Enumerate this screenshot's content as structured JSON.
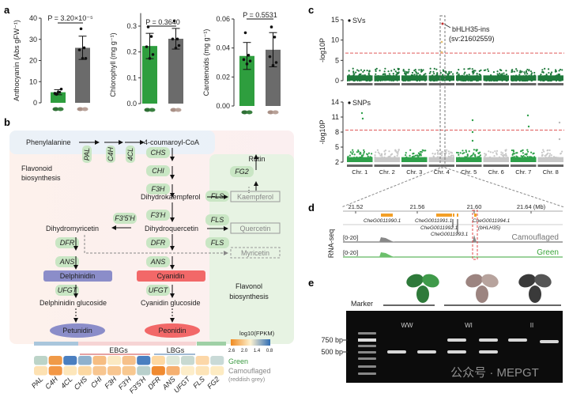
{
  "panel_labels": [
    "a",
    "b",
    "c",
    "d",
    "e"
  ],
  "chart_data": [
    {
      "type": "bar",
      "ylabel": "Anthocyanin (Abs gFW⁻¹)",
      "ylim": [
        0,
        40
      ],
      "yticks": [
        "0",
        "10",
        "20",
        "30",
        "40"
      ],
      "categories": [
        "green",
        "camouflaged"
      ],
      "values": [
        5,
        26
      ],
      "error": [
        1.2,
        5.5
      ],
      "points": [
        [
          4,
          5,
          4.5,
          6.5,
          5
        ],
        [
          35,
          26,
          25,
          21,
          21
        ]
      ],
      "pvalue": "P = 3.20×10⁻⁵",
      "colors": [
        "#2e9e3e",
        "#6b6b6b"
      ]
    },
    {
      "type": "bar",
      "ylabel": "Chlorophyll (mg g⁻¹)",
      "ylim": [
        0,
        0.35
      ],
      "yticks": [
        "0.0",
        "0.1",
        "0.2",
        "0.3"
      ],
      "categories": [
        "green",
        "camouflaged"
      ],
      "values": [
        0.223,
        0.251
      ],
      "error": [
        0.049,
        0.04
      ],
      "points": [
        [
          0.297,
          0.26,
          0.22,
          0.19,
          0.175
        ],
        [
          0.32,
          0.25,
          0.25,
          0.225,
          0.215
        ]
      ],
      "pvalue": "P = 0.3640",
      "colors": [
        "#2e9e3e",
        "#6b6b6b"
      ]
    },
    {
      "type": "bar",
      "ylabel": "Carotenoids (mg g⁻¹)",
      "ylim": [
        0,
        0.06
      ],
      "yticks": [
        "0.00",
        "0.02",
        "0.04",
        "0.06"
      ],
      "categories": [
        "green",
        "camouflaged"
      ],
      "values": [
        0.0345,
        0.0388
      ],
      "error": [
        0.0093,
        0.0118
      ],
      "points": [
        [
          0.0505,
          0.035,
          0.032,
          0.031,
          0.029
        ],
        [
          0.0545,
          0.0475,
          0.034,
          0.03,
          0.028
        ]
      ],
      "pvalue": "P = 0.5531",
      "colors": [
        "#2e9e3e",
        "#6b6b6b"
      ]
    },
    {
      "type": "scatter",
      "title": "SVs",
      "ylabel": "-log10P",
      "ylim": [
        0,
        15
      ],
      "yticks": [
        "0",
        "5",
        "10",
        "15"
      ],
      "threshold": 6.8,
      "annotation": "bHLH35-ins",
      "annotation2": "(sv:21602559)",
      "lead_value": 14
    },
    {
      "type": "scatter",
      "title": "SNPs",
      "ylabel": "-log10P",
      "ylim": [
        2,
        14
      ],
      "yticks": [
        "2",
        "5",
        "8",
        "11",
        "14"
      ],
      "threshold": 8.4,
      "categories": [
        "Chr. 1",
        "Chr. 2",
        "Chr. 3",
        "Chr. 4",
        "Chr. 5",
        "Chr. 6",
        "Chr. 7",
        "Chr. 8"
      ]
    },
    {
      "type": "heatmap",
      "legend_title": "log10(FPKM)",
      "scale_ticks": [
        "2.6",
        "2.0",
        "1.4",
        "0.8"
      ],
      "columns": [
        "PAL",
        "C4H",
        "4CL",
        "CHS",
        "CHI",
        "F3H",
        "F3'H",
        "F3'5'H",
        "DFR",
        "ANS",
        "UFGT",
        "FLS",
        "FG2"
      ],
      "rows": [
        "Green",
        "Camouflaged"
      ],
      "row_note": "(reddish grey)",
      "groups": [
        "EBGs",
        "LBGs"
      ],
      "cell_colors": [
        [
          "#bcd4c8",
          "#f09a48",
          "#4a7fc0",
          "#8fb1cd",
          "#f6bd82",
          "#fbe9c2",
          "#f6c08a",
          "#4a7fc0",
          "#fdd8a2",
          "#dfe8d8",
          "#c8d9d1",
          "#fcd7a8",
          "#c9dad7"
        ],
        [
          "#fde1b2",
          "#f39745",
          "#fde6ba",
          "#fcd8a2",
          "#f8c690",
          "#f8c690",
          "#f8c890",
          "#b9d0cc",
          "#f08a30",
          "#f6b070",
          "#fdedc9",
          "#fde4b8",
          "#fdebc2"
        ]
      ]
    }
  ],
  "pathway": {
    "nodes": [
      "Phenylalanine",
      "4-coumaroyl-CoA",
      "Flavonoid",
      "biosynthesis",
      "Dihydrokaempferol",
      "Dihydroquercetin",
      "Dihydromyricetin",
      "Rutin",
      "Delphinidin glucoside",
      "Cyanidin glucoside",
      "Flavonol",
      "biosynthesis",
      "⋮"
    ],
    "enzymes": [
      "PAL",
      "C4H",
      "4CL",
      "CHS",
      "CHI",
      "F3H",
      "F3'H",
      "F3'5'H",
      "DFR",
      "DFR",
      "ANS",
      "ANS",
      "UFGT",
      "UFGT",
      "FLS",
      "FLS",
      "FLS",
      "FG2"
    ],
    "flavonols": [
      "Kaempferol",
      "Quercetin",
      "Myricetin"
    ],
    "anthocyanidins": [
      "Delphinidin",
      "Cyanidin"
    ],
    "final": [
      "Petunidin",
      "Peonidin"
    ],
    "colors": {
      "delphinidin": "#8b8dc9",
      "cyanidin": "#f26868",
      "enzyme": "#c9e6c4"
    }
  },
  "track": {
    "ticks": [
      "21.52",
      "21.56",
      "21.60",
      "21.64 (Mb)"
    ],
    "genes": [
      "CheG0011990.1",
      "CheG0011991.1",
      "CheG0011992.1",
      "CheG0011993.1",
      "CheG0011994.1",
      "(bHLH35)"
    ],
    "ylabel": "RNA-seq",
    "range": "[0-20]",
    "tracks": [
      "Camouflaged",
      "Green"
    ]
  },
  "gel": {
    "marker": "Marker",
    "lanes": [
      "WW",
      "WI",
      "II"
    ],
    "sizes": [
      "750 bp",
      "500 bp"
    ]
  },
  "watermark": "公众号 · MEPGT"
}
